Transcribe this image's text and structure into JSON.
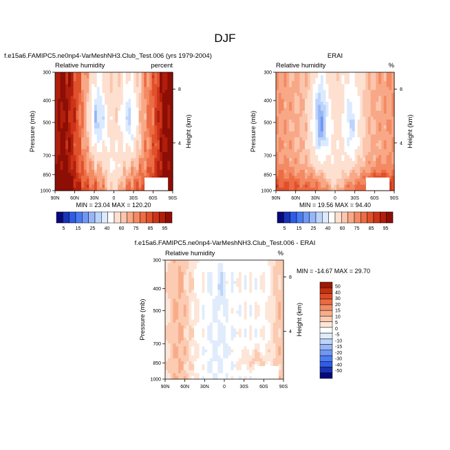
{
  "page_title": "DJF",
  "colors": {
    "rh_scale": [
      "#08087a",
      "#1933b8",
      "#2e5ce6",
      "#4a7af0",
      "#6f97f4",
      "#97b5f7",
      "#bcd3fa",
      "#dceaff",
      "#ffffff",
      "#fde0d0",
      "#fbc6ad",
      "#f8a886",
      "#f38a63",
      "#ec6c44",
      "#e0502b",
      "#cc3418",
      "#b01e0c",
      "#8c0e05"
    ],
    "diff_scale": [
      "#08087a",
      "#1a33b0",
      "#2e5ce6",
      "#4c7cf0",
      "#6f97f4",
      "#97b5f7",
      "#bcd3fa",
      "#e0ecfc",
      "#ffffff",
      "#fde6d8",
      "#fbcbb2",
      "#f8ad8a",
      "#f28c63",
      "#ea6a42",
      "#dc4a25",
      "#c2300f",
      "#9a1806"
    ]
  },
  "chart_data": [
    {
      "type": "heatmap",
      "title": "f.e15a6.FAMIPC5.ne0np4-VarMeshNH3.Club_Test.006 (yrs 1979-2004)",
      "left_string": "Relative humidity",
      "right_string": "percent",
      "xlabel": "",
      "ylabel": "Pressure (mb)",
      "ylabel_right": "Height (km)",
      "x_ticks": [
        "90N",
        "60N",
        "30N",
        "0",
        "30S",
        "60S",
        "90S"
      ],
      "y_ticks": [
        "300",
        "400",
        "500",
        "700",
        "850",
        "1000"
      ],
      "y_tick_values": [
        300,
        400,
        500,
        700,
        850,
        1000
      ],
      "height_ticks": [
        "8",
        "4"
      ],
      "height_tick_pressures": [
        356,
        616
      ],
      "ylim": [
        300,
        1000
      ],
      "xlim": [
        90,
        -90
      ],
      "min_max": "MIN = 23.04  MAX = 120.20",
      "legend_levels": [
        "5",
        "15",
        "25",
        "40",
        "60",
        "75",
        "85",
        "95"
      ],
      "field": "model"
    },
    {
      "type": "heatmap",
      "title": "ERAI",
      "left_string": "Relative humidity",
      "right_string": "%",
      "xlabel": "",
      "ylabel": "Pressure (mb)",
      "ylabel_right": "Height (km)",
      "x_ticks": [
        "90N",
        "60N",
        "30N",
        "0",
        "30S",
        "60S",
        "90S"
      ],
      "y_ticks": [
        "300",
        "400",
        "500",
        "700",
        "850",
        "1000"
      ],
      "y_tick_values": [
        300,
        400,
        500,
        700,
        850,
        1000
      ],
      "height_ticks": [
        "8",
        "4"
      ],
      "height_tick_pressures": [
        356,
        616
      ],
      "ylim": [
        300,
        1000
      ],
      "xlim": [
        90,
        -90
      ],
      "min_max": "MIN = 19.56  MAX = 94.40",
      "legend_levels": [
        "5",
        "15",
        "25",
        "40",
        "60",
        "75",
        "85",
        "95"
      ],
      "field": "erai"
    },
    {
      "type": "heatmap",
      "title": "f.e15a6.FAMIPC5.ne0np4-VarMeshNH3.Club_Test.006 - ERAI",
      "left_string": "Relative humidity",
      "right_string": "%",
      "xlabel": "",
      "ylabel": "Pressure (mb)",
      "ylabel_right": "Height (km)",
      "x_ticks": [
        "90N",
        "60N",
        "30N",
        "0",
        "30S",
        "60S",
        "90S"
      ],
      "y_ticks": [
        "300",
        "400",
        "500",
        "700",
        "850",
        "1000"
      ],
      "y_tick_values": [
        300,
        400,
        500,
        700,
        850,
        1000
      ],
      "height_ticks": [
        "8",
        "4"
      ],
      "height_tick_pressures": [
        356,
        616
      ],
      "ylim": [
        300,
        1000
      ],
      "xlim": [
        90,
        -90
      ],
      "min_max": "MIN = -14.67  MAX = 29.70",
      "legend_levels": [
        "50",
        "40",
        "30",
        "20",
        "15",
        "10",
        "5",
        "0",
        "-5",
        "-10",
        "-15",
        "-20",
        "-30",
        "-40",
        "-50"
      ],
      "field": "diff"
    }
  ]
}
